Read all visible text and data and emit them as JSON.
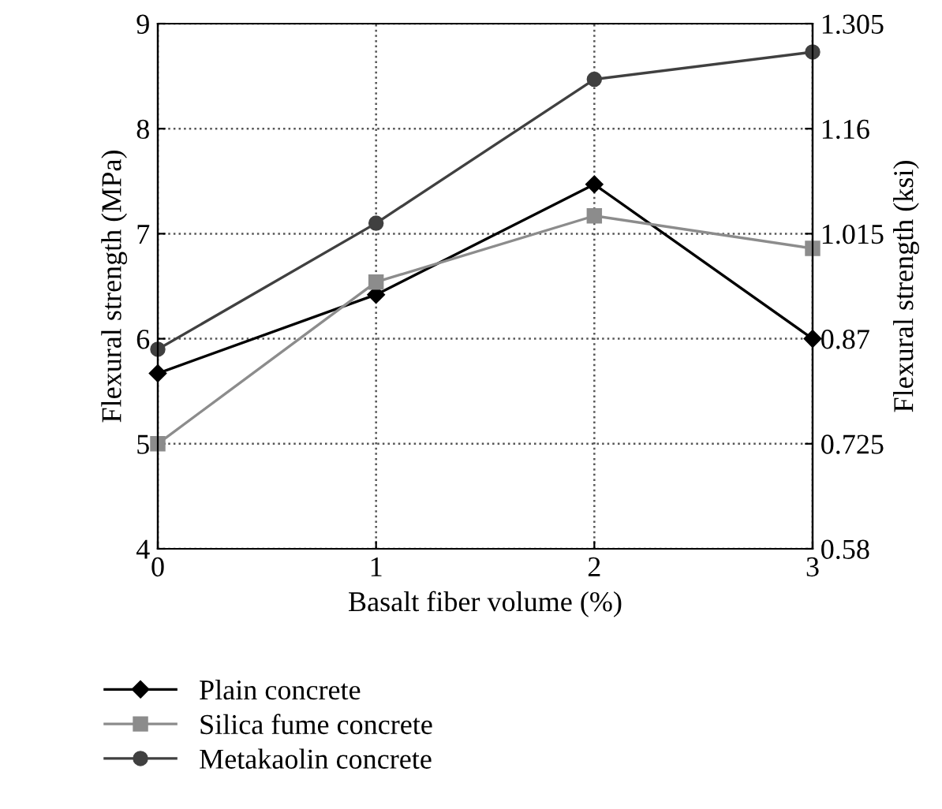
{
  "chart_data": {
    "type": "line",
    "xlabel": "Basalt fiber volume (%)",
    "ylabel": "Flexural strength (MPa)",
    "y2label": "Flexural strength (ksi)",
    "x": [
      0,
      1,
      2,
      3
    ],
    "xlim": [
      0,
      3
    ],
    "xticks": [
      0,
      1,
      2,
      3
    ],
    "ylim": [
      4,
      9
    ],
    "yticks": [
      4,
      5,
      6,
      7,
      8,
      9
    ],
    "y2lim": [
      0.58,
      1.305
    ],
    "y2ticks": [
      0.58,
      0.725,
      0.87,
      1.015,
      1.16,
      1.305
    ],
    "grid": true,
    "legend": "bottom left",
    "series": [
      {
        "name": "Plain concrete",
        "color": "#000000",
        "marker": "diamond",
        "values": [
          5.67,
          6.42,
          7.47,
          6.0
        ]
      },
      {
        "name": "Silica fume concrete",
        "color": "#8c8c8c",
        "marker": "square",
        "values": [
          5.0,
          6.54,
          7.17,
          6.86
        ]
      },
      {
        "name": "Metakaolin concrete",
        "color": "#404040",
        "marker": "circle",
        "values": [
          5.9,
          7.1,
          8.47,
          8.73
        ]
      }
    ]
  }
}
